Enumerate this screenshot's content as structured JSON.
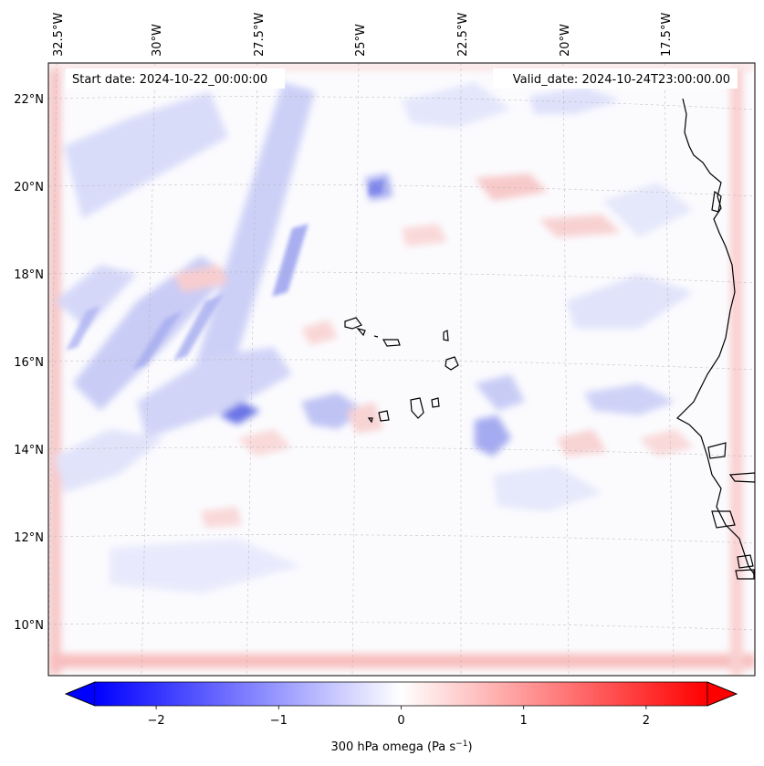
{
  "map": {
    "start_label": "Start date: 2024-10-22_00:00:00",
    "valid_label": "Valid_date: 2024-10-24T23:00:00.00",
    "lon_ticks": [
      "32.5°W",
      "30°W",
      "27.5°W",
      "25°W",
      "22.5°W",
      "20°W",
      "17.5°W"
    ],
    "lat_ticks": [
      "22°N",
      "20°N",
      "18°N",
      "16°N",
      "14°N",
      "12°N",
      "10°N"
    ],
    "field": "300 hPa omega",
    "units": "Pa s⁻¹",
    "colormap": "bwr",
    "color_low": "#0000ff",
    "color_mid": "#ffffff",
    "color_high": "#ff0000",
    "coastline_color": "#000000",
    "gridline_color": "#b0b0b0"
  },
  "colorbar": {
    "ticks": [
      "−2",
      "−1",
      "0",
      "1",
      "2"
    ],
    "tick_values": [
      -2,
      -1,
      0,
      1,
      2
    ],
    "range": [
      -2.5,
      2.5
    ],
    "extend": "both",
    "label_main": "300 hPa omega (Pa s",
    "label_sup": "−1",
    "label_tail": ")"
  }
}
